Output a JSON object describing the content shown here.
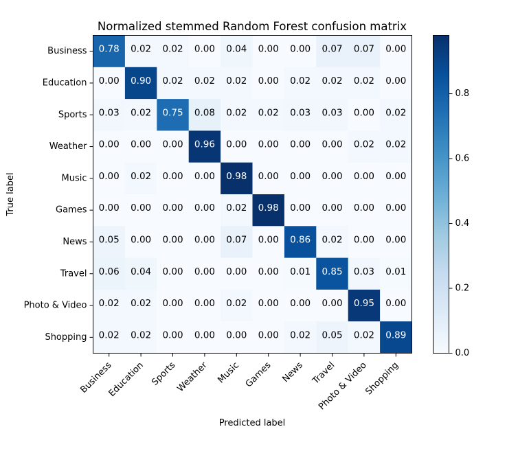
{
  "chart_data": {
    "type": "heatmap",
    "title": "Normalized stemmed Random Forest confusion matrix",
    "xlabel": "Predicted label",
    "ylabel": "True label",
    "categories": [
      "Business",
      "Education",
      "Sports",
      "Weather",
      "Music",
      "Games",
      "News",
      "Travel",
      "Photo & Video",
      "Shopping"
    ],
    "values": [
      [
        0.78,
        0.02,
        0.02,
        0.0,
        0.04,
        0.0,
        0.0,
        0.07,
        0.07,
        0.0
      ],
      [
        0.0,
        0.9,
        0.02,
        0.02,
        0.02,
        0.0,
        0.02,
        0.02,
        0.02,
        0.0
      ],
      [
        0.03,
        0.02,
        0.75,
        0.08,
        0.02,
        0.02,
        0.03,
        0.03,
        0.0,
        0.02
      ],
      [
        0.0,
        0.0,
        0.0,
        0.96,
        0.0,
        0.0,
        0.0,
        0.0,
        0.02,
        0.02
      ],
      [
        0.0,
        0.02,
        0.0,
        0.0,
        0.98,
        0.0,
        0.0,
        0.0,
        0.0,
        0.0
      ],
      [
        0.0,
        0.0,
        0.0,
        0.0,
        0.02,
        0.98,
        0.0,
        0.0,
        0.0,
        0.0
      ],
      [
        0.05,
        0.0,
        0.0,
        0.0,
        0.07,
        0.0,
        0.86,
        0.02,
        0.0,
        0.0
      ],
      [
        0.06,
        0.04,
        0.0,
        0.0,
        0.0,
        0.0,
        0.01,
        0.85,
        0.03,
        0.01
      ],
      [
        0.02,
        0.02,
        0.0,
        0.0,
        0.02,
        0.0,
        0.0,
        0.0,
        0.95,
        0.0
      ],
      [
        0.02,
        0.02,
        0.0,
        0.0,
        0.0,
        0.0,
        0.02,
        0.05,
        0.02,
        0.89
      ]
    ],
    "colorbar": {
      "ticks": [
        "0.0",
        "0.2",
        "0.4",
        "0.6",
        "0.8"
      ],
      "range": [
        0,
        0.98
      ],
      "colormap": "Blues"
    },
    "grid": false
  }
}
